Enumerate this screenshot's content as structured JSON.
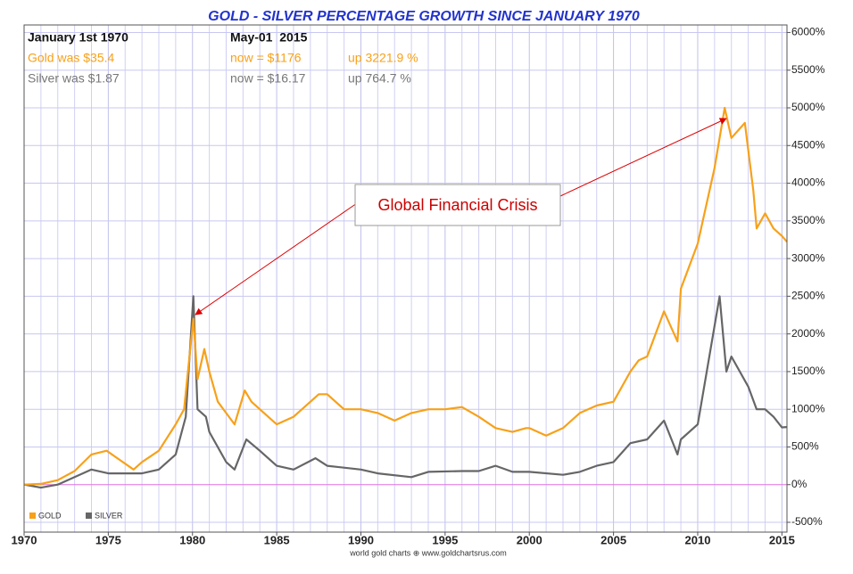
{
  "chart_data": {
    "type": "line",
    "title": "GOLD - SILVER PERCENTAGE GROWTH SINCE JANUARY 1970",
    "start_label": "January 1st 1970",
    "end_label": "May-01  2015",
    "gold_start": "Gold was $35.4",
    "gold_now": "now = $1176",
    "gold_up": "up 3221.9 %",
    "silver_start": "Silver was $1.87",
    "silver_now": "now = $16.17",
    "silver_up": "up 764.7 %",
    "annotation": "Global Financial Crisis",
    "footer": "world gold charts ⊕ www.goldchartsrus.com",
    "grid": true,
    "xlim": [
      1970,
      2015.3
    ],
    "ylim": [
      -630,
      6100
    ],
    "xticks": [
      1970,
      1975,
      1980,
      1985,
      1990,
      1995,
      2000,
      2005,
      2010,
      2015
    ],
    "xminor_ticks": [
      1971,
      1972,
      1973,
      1974,
      1976,
      1977,
      1978,
      1979,
      1981,
      1982,
      1983,
      1984,
      1986,
      1987,
      1988,
      1989,
      1991,
      1992,
      1993,
      1994,
      1996,
      1997,
      1998,
      1999,
      2001,
      2002,
      2003,
      2004,
      2006,
      2007,
      2008,
      2009,
      2011,
      2012,
      2013,
      2014
    ],
    "yticks": [
      {
        "value": -500,
        "label": "-500%"
      },
      {
        "value": 0,
        "label": "0%"
      },
      {
        "value": 500,
        "label": "500%"
      },
      {
        "value": 1000,
        "label": "1000%"
      },
      {
        "value": 1500,
        "label": "1500%"
      },
      {
        "value": 2000,
        "label": "2000%"
      },
      {
        "value": 2500,
        "label": "2500%"
      },
      {
        "value": 3000,
        "label": "3000%"
      },
      {
        "value": 3500,
        "label": "3500%"
      },
      {
        "value": 4000,
        "label": "4000%"
      },
      {
        "value": 4500,
        "label": "4500%"
      },
      {
        "value": 5000,
        "label": "5000%"
      },
      {
        "value": 5500,
        "label": "5500%"
      },
      {
        "value": 6000,
        "label": "6000%"
      }
    ],
    "series": [
      {
        "name": "GOLD",
        "color": "#f7a11a",
        "x": [
          1970,
          1971,
          1972,
          1973,
          1974,
          1974.9,
          1976.5,
          1977,
          1978,
          1979,
          1979.5,
          1980.05,
          1980.3,
          1980.7,
          1981,
          1981.5,
          1982.5,
          1983.1,
          1983.5,
          1984,
          1985,
          1986,
          1987.5,
          1988,
          1989,
          1990,
          1991,
          1992,
          1993,
          1994,
          1995,
          1996,
          1997,
          1998,
          1999,
          1999.8,
          2000,
          2001,
          2002,
          2003,
          2004,
          2005,
          2006,
          2006.5,
          2007,
          2008,
          2008.8,
          2009,
          2010,
          2011,
          2011.6,
          2012,
          2012.8,
          2013.3,
          2013.5,
          2014,
          2014.5,
          2015,
          2015.3
        ],
        "values": [
          0,
          10,
          60,
          180,
          400,
          450,
          200,
          300,
          450,
          800,
          1000,
          2200,
          1400,
          1800,
          1500,
          1100,
          800,
          1250,
          1100,
          1000,
          800,
          900,
          1200,
          1200,
          1000,
          1000,
          950,
          850,
          950,
          1000,
          1000,
          1030,
          900,
          750,
          700,
          750,
          750,
          650,
          750,
          950,
          1050,
          1100,
          1500,
          1650,
          1700,
          2300,
          1900,
          2600,
          3200,
          4200,
          5000,
          4600,
          4800,
          3900,
          3400,
          3600,
          3400,
          3300,
          3222
        ]
      },
      {
        "name": "SILVER",
        "color": "#666666",
        "x": [
          1970,
          1971,
          1972,
          1973,
          1974,
          1975,
          1977,
          1978,
          1979,
          1979.6,
          1980.05,
          1980.3,
          1980.8,
          1981,
          1982,
          1982.5,
          1983.2,
          1984,
          1985,
          1986,
          1987.3,
          1988,
          1990,
          1991,
          1993,
          1994,
          1996,
          1997,
          1998,
          1999,
          2000,
          2002,
          2003,
          2004,
          2005,
          2006,
          2007,
          2008,
          2008.8,
          2009,
          2010,
          2011.3,
          2011.7,
          2012,
          2013,
          2013.5,
          2014,
          2014.5,
          2015,
          2015.3
        ],
        "values": [
          0,
          -40,
          0,
          100,
          200,
          150,
          150,
          200,
          400,
          900,
          2500,
          1000,
          900,
          700,
          300,
          200,
          600,
          450,
          250,
          200,
          350,
          250,
          200,
          150,
          100,
          170,
          180,
          180,
          250,
          170,
          170,
          130,
          170,
          250,
          300,
          550,
          600,
          850,
          400,
          600,
          800,
          2500,
          1500,
          1700,
          1300,
          1000,
          1000,
          900,
          760,
          765
        ]
      }
    ]
  }
}
